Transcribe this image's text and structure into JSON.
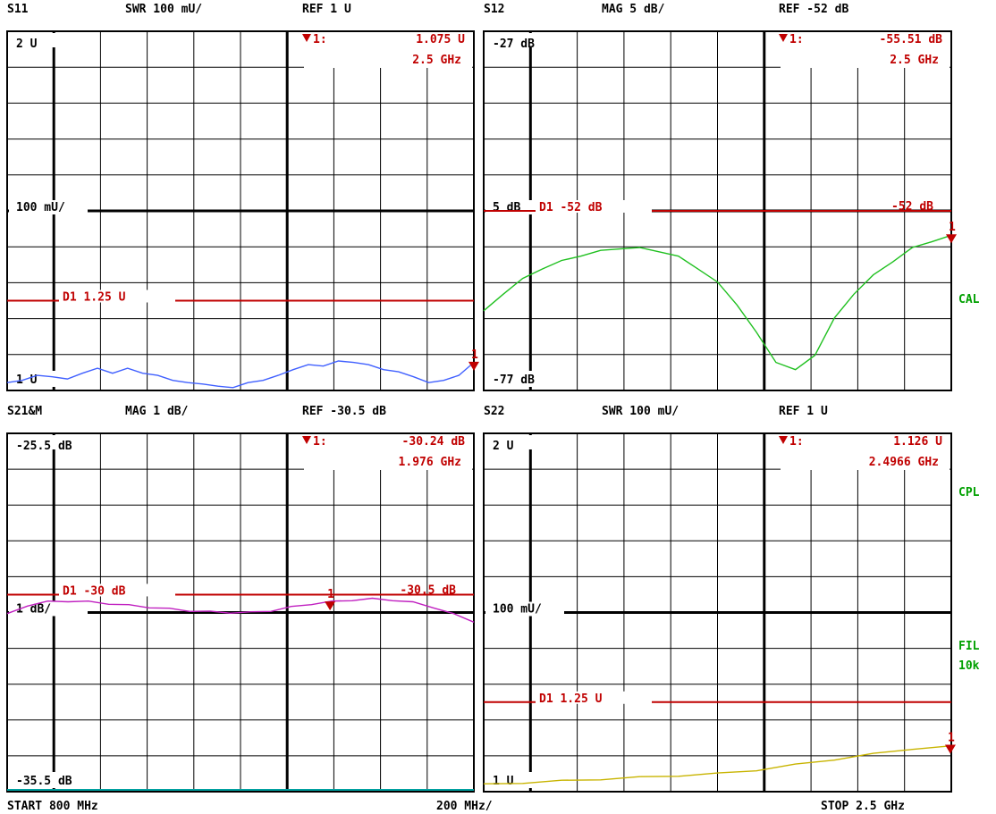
{
  "colors": {
    "grid": "#000000",
    "marker": "#c00000",
    "s11_trace": "#4060ff",
    "s12_trace": "#20c020",
    "s21_trace": "#c020c0",
    "s22_trace": "#c8b400",
    "side_label": "#00a000",
    "bottom_line": "#00a0a0"
  },
  "side_labels": {
    "cal": "CAL",
    "cpl": "CPL",
    "fil": "FIL",
    "fil_bw": "10k"
  },
  "footer": {
    "start": "START  800 MHz",
    "span": "200 MHz/",
    "stop": "STOP 2.5 GHz"
  },
  "chart_data": [
    {
      "id": "s11",
      "type": "line",
      "param": "S11",
      "format": "SWR 100 mU/",
      "ref": "REF 1 U",
      "top_label": "2 U",
      "mid_label": "100 mU/",
      "bottom_label": "1 U",
      "ylim": [
        1,
        2
      ],
      "marker": {
        "label": "1:",
        "value": "1.075  U",
        "freq": "2.5 GHz",
        "num": "1",
        "x": 2500,
        "y": 1.075
      },
      "limit_line": {
        "label": "D1  1.25  U",
        "y": 1.25
      },
      "series": [
        {
          "x_start": 800,
          "x_stop": 2500,
          "values": [
            1.02,
            1.03,
            1.04,
            1.04,
            1.03,
            1.05,
            1.06,
            1.05,
            1.06,
            1.05,
            1.04,
            1.03,
            1.02,
            1.02,
            1.01,
            1.01,
            1.02,
            1.03,
            1.04,
            1.06,
            1.07,
            1.07,
            1.08,
            1.08,
            1.07,
            1.06,
            1.05,
            1.04,
            1.02,
            1.03,
            1.04,
            1.08
          ]
        }
      ]
    },
    {
      "id": "s12",
      "type": "line",
      "param": "S12",
      "format": "MAG 5 dB/",
      "ref": "REF -52 dB",
      "top_label": "-27 dB",
      "mid_label": "5 dB",
      "bottom_label": "-77 dB",
      "ylim": [
        -77,
        -27
      ],
      "marker": {
        "label": "1:",
        "value": "-55.51 dB",
        "freq": "2.5 GHz",
        "num": "1",
        "x": 2500,
        "y": -55.51
      },
      "limit_line": {
        "label": "D1  -52  dB",
        "y": -52,
        "right_label": "-52  dB"
      },
      "series": [
        {
          "x_start": 800,
          "x_stop": 2500,
          "values": [
            -66,
            -63.5,
            -61.5,
            -60,
            -59,
            -58.2,
            -57.6,
            -57.2,
            -57.2,
            -57.6,
            -58.4,
            -60,
            -62,
            -65,
            -69,
            -73,
            -74.2,
            -72,
            -67,
            -63.5,
            -61,
            -59,
            -57.2,
            -56.2,
            -55.5
          ]
        }
      ]
    },
    {
      "id": "s21",
      "type": "line",
      "param": "S21&M",
      "format": "MAG 1 dB/",
      "ref": "REF -30.5 dB",
      "top_label": "-25.5 dB",
      "mid_label": "1 dB/",
      "bottom_label": "-35.5 dB",
      "ylim": [
        -35.5,
        -25.5
      ],
      "marker": {
        "label": "1:",
        "value": "-30.24 dB",
        "freq": "1.976 GHz",
        "num": "1",
        "x": 1976,
        "y": -30.24
      },
      "limit_line": {
        "label": "D1  -30  dB",
        "y": -30,
        "right_label": "-30.5  dB"
      },
      "series": [
        {
          "x_start": 800,
          "x_stop": 2500,
          "values": [
            -30.55,
            -30.3,
            -30.2,
            -30.18,
            -30.2,
            -30.25,
            -30.3,
            -30.35,
            -30.4,
            -30.45,
            -30.48,
            -30.5,
            -30.5,
            -30.45,
            -30.35,
            -30.26,
            -30.2,
            -30.15,
            -30.12,
            -30.15,
            -30.22,
            -30.35,
            -30.55,
            -30.75
          ]
        }
      ]
    },
    {
      "id": "s22",
      "type": "line",
      "param": "S22",
      "format": "SWR 100 mU/",
      "ref": "REF 1 U",
      "top_label": "2 U",
      "mid_label": "100 mU/",
      "bottom_label": "1 U",
      "ylim": [
        1,
        2
      ],
      "marker": {
        "label": "1:",
        "value": "1.126  U",
        "freq": "2.4966 GHz",
        "num": "1",
        "x": 2496.6,
        "y": 1.126
      },
      "limit_line": {
        "label": "D1  1.25  U",
        "y": 1.25
      },
      "series": [
        {
          "x_start": 800,
          "x_stop": 2500,
          "values": [
            1.02,
            1.025,
            1.03,
            1.035,
            1.04,
            1.045,
            1.05,
            1.06,
            1.075,
            1.09,
            1.105,
            1.12,
            1.126
          ]
        }
      ]
    }
  ]
}
